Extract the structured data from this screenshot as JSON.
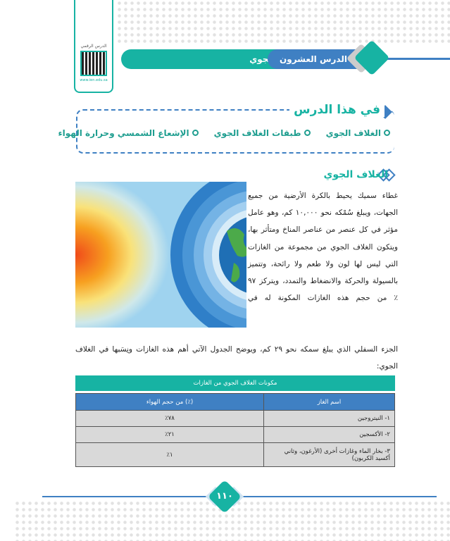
{
  "qr": {
    "label": "الدرس الرقمي",
    "url": "www.ien.edu.sa"
  },
  "header": {
    "lesson_number": "الدرس العشرون",
    "lesson_title": "مكونات الغلاف الجوي"
  },
  "in_lesson": {
    "title": "في هذا الدرس",
    "topics": [
      "الغلاف الجوي",
      "طبقات الغلاف الجوي",
      "الإشعاع الشمسي وحرارة الهواء"
    ]
  },
  "section": {
    "heading": "الغلاف الجوي",
    "paragraph": "غطاء سميك يحيط بالكرة الأرضية من جميع الجهات، ويبلغ سُمْكه نحو ١٠,٠٠٠ كم، وهو عامل مؤثر في كل عنصر من عناصر المناخ ومتأثر بها، ويتكون الغلاف الجوي من مجموعة من الغازات التي ليس لها لون ولا طعم ولا رائحة، وتتميز بالسيولة والحركة والانضغاط والتمدد، ويتركز ٩٧ ٪ من حجم هذه الغازات المكونة له في",
    "paragraph_cont": "الجزء السفلي الذي يبلغ سمكه نحو ٢٩ كم، ويوضح الجدول الآتي أهم هذه الغازات ونِسَبها في الغلاف الجوي:"
  },
  "table": {
    "caption": "مكونات الغلاف الجوي من الغازات",
    "headers": [
      "اسم الغاز",
      "(٪) من حجم الهواء"
    ],
    "rows": [
      [
        "١- النيتروجين",
        "٧٨٪"
      ],
      [
        "٢- الأكسجين",
        "٢١٪"
      ],
      [
        "٣- بخار الماء وغازات أخرى (الأرغون، وثاني أكسيد الكربون)",
        "١٪"
      ]
    ]
  },
  "page_number": "١١٠",
  "colors": {
    "teal": "#17b3a3",
    "blue": "#3f80c3"
  }
}
